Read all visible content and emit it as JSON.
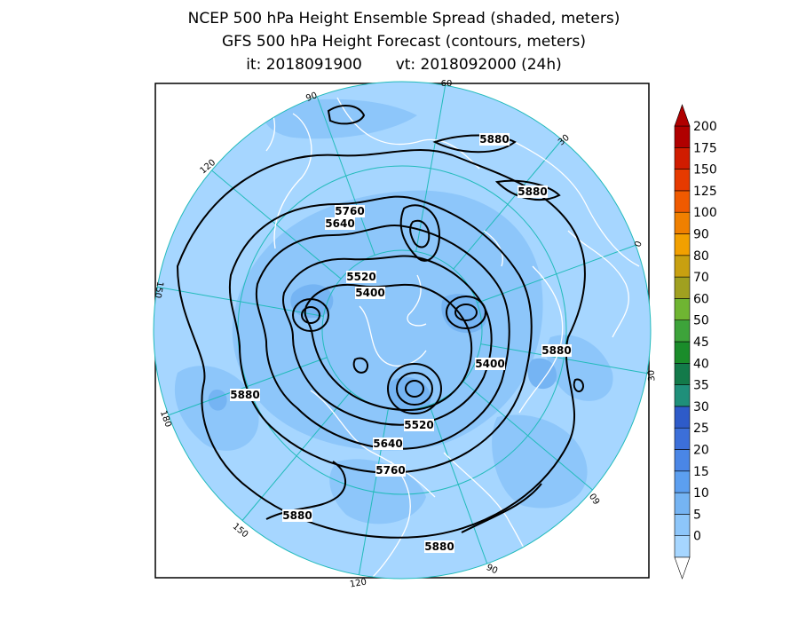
{
  "title": {
    "line1": "NCEP 500 hPa Height Ensemble Spread (shaded, meters)",
    "line2": "GFS 500 hPa Height Forecast (contours, meters)",
    "line3": "it: 2018091900       vt: 2018092000 (24h)"
  },
  "colorbar": {
    "levels": [
      "0",
      "5",
      "10",
      "15",
      "20",
      "25",
      "30",
      "35",
      "40",
      "45",
      "50",
      "60",
      "70",
      "80",
      "90",
      "100",
      "125",
      "150",
      "175",
      "200"
    ],
    "colors": [
      "#a6d6ff",
      "#8dc6fa",
      "#75b4f3",
      "#5c9ff0",
      "#4a86e6",
      "#3c6fd9",
      "#2e5bc9",
      "#1f8f7a",
      "#137a4a",
      "#1a8c2a",
      "#3da33a",
      "#6fb532",
      "#a0a020",
      "#c8a010",
      "#f2a000",
      "#f08000",
      "#f05a00",
      "#e63a00",
      "#d01c00",
      "#b00000"
    ],
    "units": "meters"
  },
  "contour_labels": [
    {
      "text": "5880",
      "pos": "north-top"
    },
    {
      "text": "5880",
      "pos": "north-right"
    },
    {
      "text": "5760",
      "pos": "upper-left"
    },
    {
      "text": "5640",
      "pos": "upper-left-2"
    },
    {
      "text": "5520",
      "pos": "center-upper"
    },
    {
      "text": "5400",
      "pos": "center-left"
    },
    {
      "text": "5400",
      "pos": "center-right"
    },
    {
      "text": "5880",
      "pos": "right"
    },
    {
      "text": "5880",
      "pos": "left"
    },
    {
      "text": "5520",
      "pos": "center-lower"
    },
    {
      "text": "5640",
      "pos": "lower"
    },
    {
      "text": "5760",
      "pos": "lower-2"
    },
    {
      "text": "5880",
      "pos": "bottom-left"
    },
    {
      "text": "5880",
      "pos": "bottom"
    }
  ],
  "longitude_labels": [
    "60",
    "30",
    "0",
    "30",
    "60",
    "90",
    "120",
    "150",
    "180",
    "150",
    "120",
    "90"
  ],
  "colors": {
    "ocean": "#a6d6ff",
    "shade": "#8dc6fa",
    "grid": "#22bbbb",
    "coast": "#ffffff",
    "contour": "#000000"
  }
}
